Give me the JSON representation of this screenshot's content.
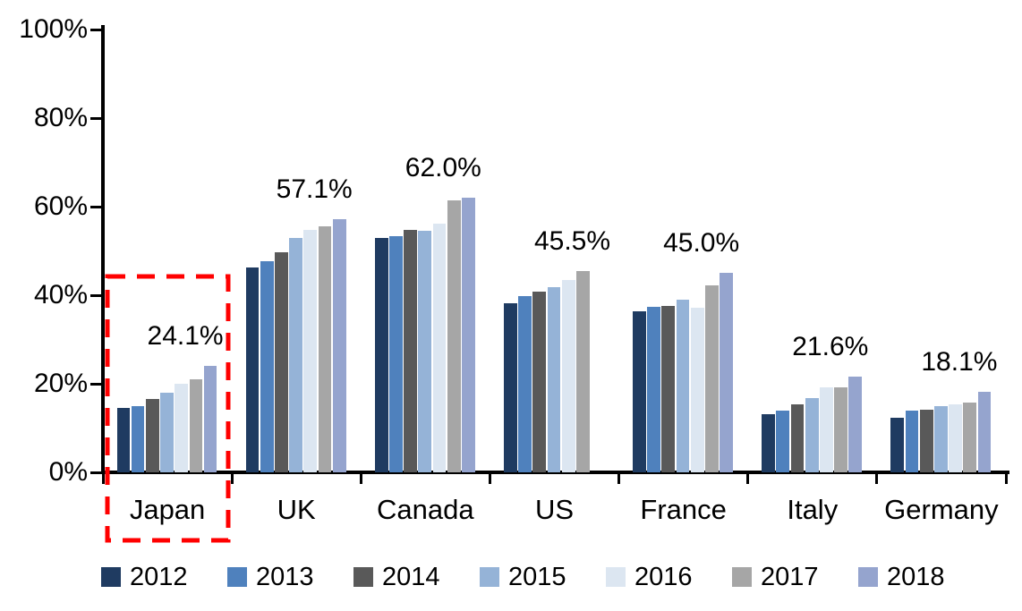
{
  "chart_data": {
    "type": "bar",
    "title": "",
    "categories": [
      "Japan",
      "UK",
      "Canada",
      "US",
      "France",
      "Italy",
      "Germany"
    ],
    "series": [
      {
        "name": "2012",
        "color": "#1F3B61",
        "values": [
          14.6,
          46.3,
          52.9,
          38.2,
          36.4,
          13.2,
          12.4
        ]
      },
      {
        "name": "2013",
        "color": "#4F81BD",
        "values": [
          15.0,
          47.7,
          53.3,
          39.8,
          37.4,
          14.0,
          13.9
        ]
      },
      {
        "name": "2014",
        "color": "#595959",
        "values": [
          16.6,
          49.7,
          54.8,
          40.8,
          37.5,
          15.4,
          14.2
        ]
      },
      {
        "name": "2015",
        "color": "#95B3D7",
        "values": [
          18.0,
          52.9,
          54.6,
          41.8,
          39.0,
          16.8,
          14.9
        ]
      },
      {
        "name": "2016",
        "color": "#DCE6F1",
        "values": [
          19.9,
          54.7,
          56.2,
          43.4,
          37.2,
          19.1,
          15.3
        ]
      },
      {
        "name": "2017",
        "color": "#A6A6A6",
        "values": [
          21.0,
          55.6,
          61.4,
          45.5,
          42.3,
          19.2,
          15.8
        ]
      },
      {
        "name": "2018",
        "color": "#95A4CE",
        "values": [
          24.1,
          57.1,
          62.0,
          null,
          45.0,
          21.6,
          18.1
        ]
      }
    ],
    "value_labels": {
      "Japan": "24.1%",
      "UK": "57.1%",
      "Canada": "62.0%",
      "US": "45.5%",
      "France": "45.0%",
      "Italy": "21.6%",
      "Germany": "18.1%"
    },
    "y_axis": {
      "tick_labels": [
        "0%",
        "20%",
        "40%",
        "60%",
        "80%",
        "100%"
      ],
      "min": 0,
      "max": 100
    },
    "legend": [
      "2012",
      "2013",
      "2014",
      "2015",
      "2016",
      "2017",
      "2018"
    ],
    "legend_position": "bottom",
    "grid": false,
    "annotation": {
      "type": "highlight-box",
      "target": "Japan",
      "style": "dashed",
      "color": "#FF0000"
    }
  }
}
